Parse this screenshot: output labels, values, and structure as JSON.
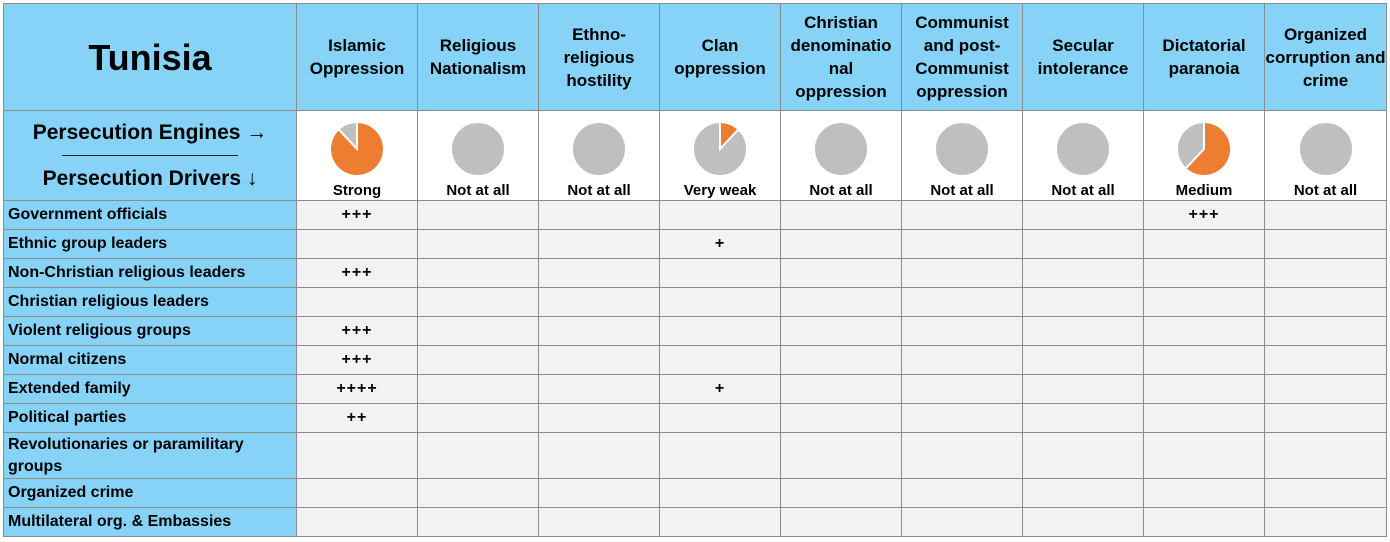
{
  "chart_data": {
    "type": "table",
    "title": "Tunisia",
    "engines_label": "Persecution Engines →",
    "drivers_label": "Persecution Drivers ↓",
    "engines": [
      {
        "name": "Islamic Oppression",
        "level": "Strong",
        "fill_fraction": 0.88
      },
      {
        "name": "Religious Nationalism",
        "level": "Not at all",
        "fill_fraction": 0
      },
      {
        "name": "Ethno-religious hostility",
        "level": "Not at all",
        "fill_fraction": 0
      },
      {
        "name": "Clan oppression",
        "level": "Very weak",
        "fill_fraction": 0.12
      },
      {
        "name": "Christian denominatio nal oppression",
        "level": "Not at all",
        "fill_fraction": 0
      },
      {
        "name": "Communist and post-Communist oppression",
        "level": "Not at all",
        "fill_fraction": 0
      },
      {
        "name": "Secular intolerance",
        "level": "Not at all",
        "fill_fraction": 0
      },
      {
        "name": "Dictatorial paranoia",
        "level": "Medium",
        "fill_fraction": 0.62
      },
      {
        "name": "Organized corruption and crime",
        "level": "Not at all",
        "fill_fraction": 0
      }
    ],
    "drivers": [
      {
        "name": "Government officials",
        "values": [
          "+++",
          "",
          "",
          "",
          "",
          "",
          "",
          "+++",
          ""
        ]
      },
      {
        "name": "Ethnic group leaders",
        "values": [
          "",
          "",
          "",
          "+",
          "",
          "",
          "",
          "",
          ""
        ]
      },
      {
        "name": "Non-Christian religious leaders",
        "values": [
          "+++",
          "",
          "",
          "",
          "",
          "",
          "",
          "",
          ""
        ]
      },
      {
        "name": "Christian religious leaders",
        "values": [
          "",
          "",
          "",
          "",
          "",
          "",
          "",
          "",
          ""
        ]
      },
      {
        "name": "Violent religious groups",
        "values": [
          "+++",
          "",
          "",
          "",
          "",
          "",
          "",
          "",
          ""
        ]
      },
      {
        "name": "Normal citizens",
        "values": [
          "+++",
          "",
          "",
          "",
          "",
          "",
          "",
          "",
          ""
        ]
      },
      {
        "name": "Extended family",
        "values": [
          "++++",
          "",
          "",
          "+",
          "",
          "",
          "",
          "",
          ""
        ]
      },
      {
        "name": "Political parties",
        "values": [
          "++",
          "",
          "",
          "",
          "",
          "",
          "",
          "",
          ""
        ]
      },
      {
        "name": "Revolutionaries or paramilitary groups",
        "values": [
          "",
          "",
          "",
          "",
          "",
          "",
          "",
          "",
          ""
        ]
      },
      {
        "name": "Organized crime",
        "values": [
          "",
          "",
          "",
          "",
          "",
          "",
          "",
          "",
          ""
        ]
      },
      {
        "name": "Multilateral org. & Embassies",
        "values": [
          "",
          "",
          "",
          "",
          "",
          "",
          "",
          "",
          ""
        ]
      }
    ],
    "colors": {
      "header_bg": "#87d3f8",
      "cell_bg": "#f2f2f2",
      "pie_fill": "#ed7d31",
      "pie_empty": "#bfbfbf"
    }
  }
}
